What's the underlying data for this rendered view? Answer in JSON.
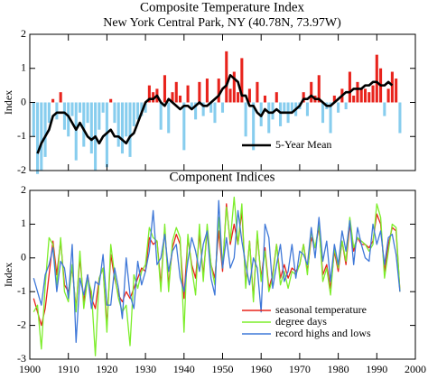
{
  "chart_data": [
    {
      "type": "bar",
      "title": "Composite Temperature Index",
      "subtitle": "New York Central Park, NY   (40.78N, 73.97W)",
      "y_label": "Index",
      "x": [
        1901,
        1902,
        1903,
        1904,
        1905,
        1906,
        1907,
        1908,
        1909,
        1910,
        1911,
        1912,
        1913,
        1914,
        1915,
        1916,
        1917,
        1918,
        1919,
        1920,
        1921,
        1922,
        1923,
        1924,
        1925,
        1926,
        1927,
        1928,
        1929,
        1930,
        1931,
        1932,
        1933,
        1934,
        1935,
        1936,
        1937,
        1938,
        1939,
        1940,
        1941,
        1942,
        1943,
        1944,
        1945,
        1946,
        1947,
        1948,
        1949,
        1950,
        1951,
        1952,
        1953,
        1954,
        1955,
        1956,
        1957,
        1958,
        1959,
        1960,
        1961,
        1962,
        1963,
        1964,
        1965,
        1966,
        1967,
        1968,
        1969,
        1970,
        1971,
        1972,
        1973,
        1974,
        1975,
        1976,
        1977,
        1978,
        1979,
        1980,
        1981,
        1982,
        1983,
        1984,
        1985,
        1986,
        1987,
        1988,
        1989,
        1990,
        1991,
        1992,
        1993,
        1994,
        1995,
        1996
      ],
      "series": [
        {
          "positive_color": "#e8231c",
          "negative_color": "#87cdee",
          "values": [
            -1.0,
            -2.1,
            -2.0,
            -1.6,
            -0.6,
            0.1,
            -0.5,
            0.3,
            -0.8,
            -1.0,
            -0.4,
            -1.7,
            -0.3,
            -1.3,
            -0.6,
            -1.5,
            -2.0,
            -0.8,
            -0.3,
            -1.9,
            0.1,
            -0.6,
            -1.3,
            -1.5,
            -1.0,
            -1.6,
            -0.7,
            -0.5,
            -0.4,
            -0.3,
            0.5,
            0.3,
            0.4,
            -0.8,
            0.8,
            -0.9,
            0.3,
            0.6,
            0.2,
            -1.4,
            0.5,
            -0.2,
            -0.5,
            0.6,
            -0.4,
            0.7,
            -0.3,
            -0.6,
            0.7,
            -0.3,
            1.5,
            0.4,
            0.9,
            0.3,
            1.3,
            -1.0,
            0.4,
            -1.4,
            0.6,
            -0.7,
            0.2,
            -0.9,
            -0.5,
            0.3,
            -0.7,
            -0.3,
            -0.6,
            -0.3,
            -0.4,
            -0.2,
            0.3,
            -0.4,
            0.6,
            0.2,
            0.8,
            -0.6,
            -0.2,
            -0.9,
            0.2,
            -0.3,
            0.4,
            -0.2,
            0.9,
            0.2,
            0.6,
            0.4,
            0.4,
            0.3,
            0.5,
            1.4,
            1.0,
            -0.4,
            0.4,
            0.9,
            0.7,
            -0.9
          ]
        },
        {
          "type": "line",
          "name": "5-Year Mean",
          "color": "#000000",
          "x": [
            1902,
            1903,
            1904,
            1905,
            1906,
            1907,
            1908,
            1909,
            1910,
            1911,
            1912,
            1913,
            1914,
            1915,
            1916,
            1917,
            1918,
            1919,
            1920,
            1921,
            1922,
            1923,
            1924,
            1925,
            1926,
            1927,
            1928,
            1929,
            1930,
            1931,
            1932,
            1933,
            1934,
            1935,
            1936,
            1937,
            1938,
            1939,
            1940,
            1941,
            1942,
            1943,
            1944,
            1945,
            1946,
            1947,
            1948,
            1949,
            1950,
            1951,
            1952,
            1953,
            1954,
            1955,
            1956,
            1957,
            1958,
            1959,
            1960,
            1961,
            1962,
            1963,
            1964,
            1965,
            1966,
            1967,
            1968,
            1969,
            1970,
            1971,
            1972,
            1973,
            1974,
            1975,
            1976,
            1977,
            1978,
            1979,
            1980,
            1981,
            1982,
            1983,
            1984,
            1985,
            1986,
            1987,
            1988,
            1989,
            1990,
            1991,
            1992,
            1993,
            1994
          ],
          "values": [
            -1.5,
            -1.2,
            -1.0,
            -0.8,
            -0.4,
            -0.3,
            -0.3,
            -0.3,
            -0.4,
            -0.6,
            -0.8,
            -0.6,
            -0.8,
            -1.0,
            -1.1,
            -1.0,
            -1.2,
            -1.0,
            -0.9,
            -0.8,
            -1.0,
            -1.0,
            -1.1,
            -1.2,
            -1.0,
            -0.9,
            -0.6,
            -0.3,
            0.0,
            0.1,
            0.1,
            0.2,
            0.0,
            -0.1,
            0.1,
            0.0,
            -0.1,
            -0.2,
            -0.1,
            -0.1,
            -0.2,
            -0.1,
            0.0,
            -0.1,
            -0.1,
            0.0,
            0.1,
            0.2,
            0.4,
            0.5,
            0.8,
            0.7,
            0.6,
            0.2,
            0.2,
            -0.1,
            -0.1,
            -0.3,
            -0.4,
            -0.2,
            -0.3,
            -0.3,
            -0.2,
            -0.3,
            -0.3,
            -0.3,
            -0.3,
            -0.2,
            -0.1,
            0.1,
            0.1,
            0.2,
            0.1,
            0.1,
            0.0,
            -0.1,
            -0.1,
            0.0,
            0.1,
            0.2,
            0.3,
            0.3,
            0.4,
            0.4,
            0.4,
            0.5,
            0.5,
            0.6,
            0.6,
            0.5,
            0.5,
            0.6,
            0.5
          ]
        }
      ],
      "xlim": [
        1900,
        2000
      ],
      "xticks": [
        1900,
        1910,
        1920,
        1930,
        1940,
        1950,
        1960,
        1970,
        1980,
        1990,
        2000
      ],
      "x_tick_labels": false,
      "ylim": [
        -2,
        2
      ],
      "yticks": [
        -2,
        -1,
        0,
        1,
        2
      ],
      "legend": "lower right"
    },
    {
      "type": "line",
      "title": "Component Indices",
      "y_label": "Index",
      "x": [
        1901,
        1902,
        1903,
        1904,
        1905,
        1906,
        1907,
        1908,
        1909,
        1910,
        1911,
        1912,
        1913,
        1914,
        1915,
        1916,
        1917,
        1918,
        1919,
        1920,
        1921,
        1922,
        1923,
        1924,
        1925,
        1926,
        1927,
        1928,
        1929,
        1930,
        1931,
        1932,
        1933,
        1934,
        1935,
        1936,
        1937,
        1938,
        1939,
        1940,
        1941,
        1942,
        1943,
        1944,
        1945,
        1946,
        1947,
        1948,
        1949,
        1950,
        1951,
        1952,
        1953,
        1954,
        1955,
        1956,
        1957,
        1958,
        1959,
        1960,
        1961,
        1962,
        1963,
        1964,
        1965,
        1966,
        1967,
        1968,
        1969,
        1970,
        1971,
        1972,
        1973,
        1974,
        1975,
        1976,
        1977,
        1978,
        1979,
        1980,
        1981,
        1982,
        1983,
        1984,
        1985,
        1986,
        1987,
        1988,
        1989,
        1990,
        1991,
        1992,
        1993,
        1994,
        1995,
        1996
      ],
      "series": [
        {
          "name": "seasonal temperature",
          "color": "#e8231c",
          "values": [
            -1.2,
            -1.6,
            -2.0,
            -1.5,
            -0.5,
            0.5,
            -0.5,
            0.5,
            -0.8,
            -1.0,
            -0.3,
            -1.5,
            0.0,
            -1.3,
            -0.5,
            -1.2,
            -1.5,
            -0.6,
            -0.3,
            -2.0,
            0.1,
            -0.6,
            -1.1,
            -1.3,
            -1.0,
            -1.2,
            -0.9,
            -0.6,
            -0.3,
            -0.4,
            0.6,
            0.4,
            0.5,
            -0.8,
            0.9,
            -0.8,
            0.3,
            0.7,
            0.4,
            -1.2,
            0.6,
            -0.2,
            -0.6,
            0.7,
            -0.5,
            0.8,
            -0.2,
            -0.6,
            0.8,
            -0.4,
            1.6,
            0.4,
            1.0,
            0.4,
            1.4,
            -0.8,
            0.5,
            -1.2,
            0.7,
            -0.6,
            0.3,
            -0.9,
            -0.5,
            0.4,
            -0.6,
            -0.2,
            -0.6,
            -0.3,
            -0.4,
            -0.2,
            0.4,
            -0.4,
            0.6,
            0.3,
            0.9,
            -0.5,
            -0.2,
            -0.9,
            0.2,
            -0.4,
            0.5,
            -0.2,
            1.0,
            0.2,
            0.6,
            0.4,
            0.4,
            0.3,
            0.5,
            1.3,
            1.0,
            -0.4,
            0.4,
            0.9,
            0.8,
            -1.0
          ]
        },
        {
          "name": "degree days",
          "color": "#7ced2a",
          "values": [
            -1.6,
            -1.4,
            -2.7,
            -0.8,
            0.6,
            0.4,
            -0.8,
            0.6,
            -1.0,
            -1.3,
            -0.2,
            -1.6,
            0.2,
            -1.5,
            -0.6,
            -1.0,
            -2.9,
            -0.6,
            -0.3,
            -2.2,
            0.4,
            -0.5,
            -1.2,
            -1.6,
            -1.4,
            -2.6,
            -0.5,
            -0.9,
            -0.4,
            -0.2,
            0.9,
            0.6,
            0.5,
            -1.0,
            1.0,
            -1.0,
            0.5,
            0.9,
            0.6,
            -2.2,
            0.7,
            -0.3,
            -1.1,
            1.0,
            -0.7,
            1.0,
            -0.2,
            -0.8,
            1.2,
            -0.3,
            1.5,
            0.5,
            1.8,
            0.4,
            1.6,
            -0.9,
            0.5,
            -1.3,
            0.8,
            -0.7,
            0.2,
            -1.0,
            -0.6,
            0.4,
            -0.8,
            -0.4,
            -0.9,
            -0.4,
            -0.5,
            -0.2,
            0.4,
            -0.5,
            0.8,
            0.3,
            1.0,
            -0.7,
            -0.3,
            -1.1,
            0.3,
            -0.3,
            0.5,
            -0.1,
            1.2,
            0.3,
            0.6,
            0.5,
            0.4,
            0.2,
            0.4,
            1.6,
            1.2,
            -0.6,
            0.2,
            1.0,
            0.9,
            -1.0
          ]
        },
        {
          "name": "record highs and lows",
          "color": "#3f78d8",
          "values": [
            -0.6,
            -1.0,
            -1.4,
            -0.5,
            -0.2,
            0.3,
            -1.0,
            -0.1,
            -0.3,
            -1.2,
            0.4,
            -2.5,
            -0.6,
            -1.1,
            -0.5,
            -1.5,
            -0.7,
            -0.8,
            0.1,
            -1.4,
            -1.4,
            -0.3,
            -0.9,
            -1.8,
            0.0,
            -1.1,
            -1.5,
            -0.1,
            -0.8,
            -0.4,
            0.2,
            1.4,
            -0.2,
            0.0,
            0.7,
            -0.4,
            0.2,
            0.4,
            -0.6,
            -1.0,
            -0.1,
            0.6,
            0.2,
            -0.4,
            0.4,
            0.8,
            -0.6,
            -1.1,
            1.7,
            -0.3,
            0.6,
            -0.3,
            0.0,
            1.4,
            0.5,
            -0.2,
            -0.8,
            0.0,
            -0.3,
            -1.6,
            1.0,
            0.6,
            -0.9,
            -0.2,
            0.4,
            -0.7,
            -0.4,
            0.4,
            -0.6,
            0.2,
            0.1,
            -0.2,
            0.9,
            0.0,
            1.2,
            -0.1,
            0.5,
            -0.7,
            0.4,
            -0.2,
            0.8,
            0.2,
            1.1,
            -0.2,
            0.9,
            0.4,
            0.0,
            -0.1,
            1.0,
            0.4,
            0.8,
            -0.2,
            0.6,
            0.7,
            0.1,
            -1.0
          ]
        }
      ],
      "xlim": [
        1900,
        2000
      ],
      "xticks": [
        1900,
        1910,
        1920,
        1930,
        1940,
        1950,
        1960,
        1970,
        1980,
        1990,
        2000
      ],
      "ylim": [
        -3,
        2
      ],
      "yticks": [
        -3,
        -2,
        -1,
        0,
        1,
        2
      ],
      "legend": "lower right"
    }
  ]
}
